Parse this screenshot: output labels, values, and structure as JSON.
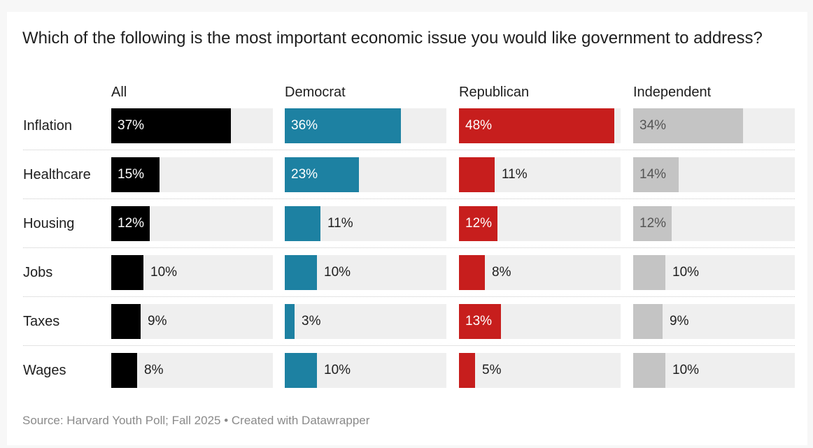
{
  "title": "Which of the following is the most important economic issue you would like government to address?",
  "source": "Source: Harvard Youth Poll; Fall 2025 • Created with Datawrapper",
  "chart_data": {
    "type": "bar",
    "orientation": "horizontal",
    "layout": "small-multiples",
    "title": "Which of the following is the most important economic issue you would like government to address?",
    "categories": [
      "Inflation",
      "Healthcare",
      "Housing",
      "Jobs",
      "Taxes",
      "Wages"
    ],
    "xlim": [
      0,
      50
    ],
    "unit": "%",
    "series": [
      {
        "name": "All",
        "color": "#000000",
        "values": [
          37,
          15,
          12,
          10,
          9,
          8
        ],
        "labels": [
          "37%",
          "15%",
          "12%",
          "10%",
          "9%",
          "8%"
        ]
      },
      {
        "name": "Democrat",
        "color": "#1d81a2",
        "values": [
          36,
          23,
          11,
          10,
          3,
          10
        ],
        "labels": [
          "36%",
          "23%",
          "11%",
          "10%",
          "3%",
          "10%"
        ]
      },
      {
        "name": "Republican",
        "color": "#c71e1d",
        "values": [
          48,
          11,
          12,
          8,
          13,
          5
        ],
        "labels": [
          "48%",
          "11%",
          "12%",
          "8%",
          "13%",
          "5%"
        ]
      },
      {
        "name": "Independent",
        "color": "#c4c4c4",
        "values": [
          34,
          14,
          12,
          10,
          9,
          10
        ],
        "labels": [
          "34%",
          "14%",
          "12%",
          "10%",
          "9%",
          "10%"
        ]
      }
    ],
    "source": "Source: Harvard Youth Poll; Fall 2025 • Created with Datawrapper"
  }
}
